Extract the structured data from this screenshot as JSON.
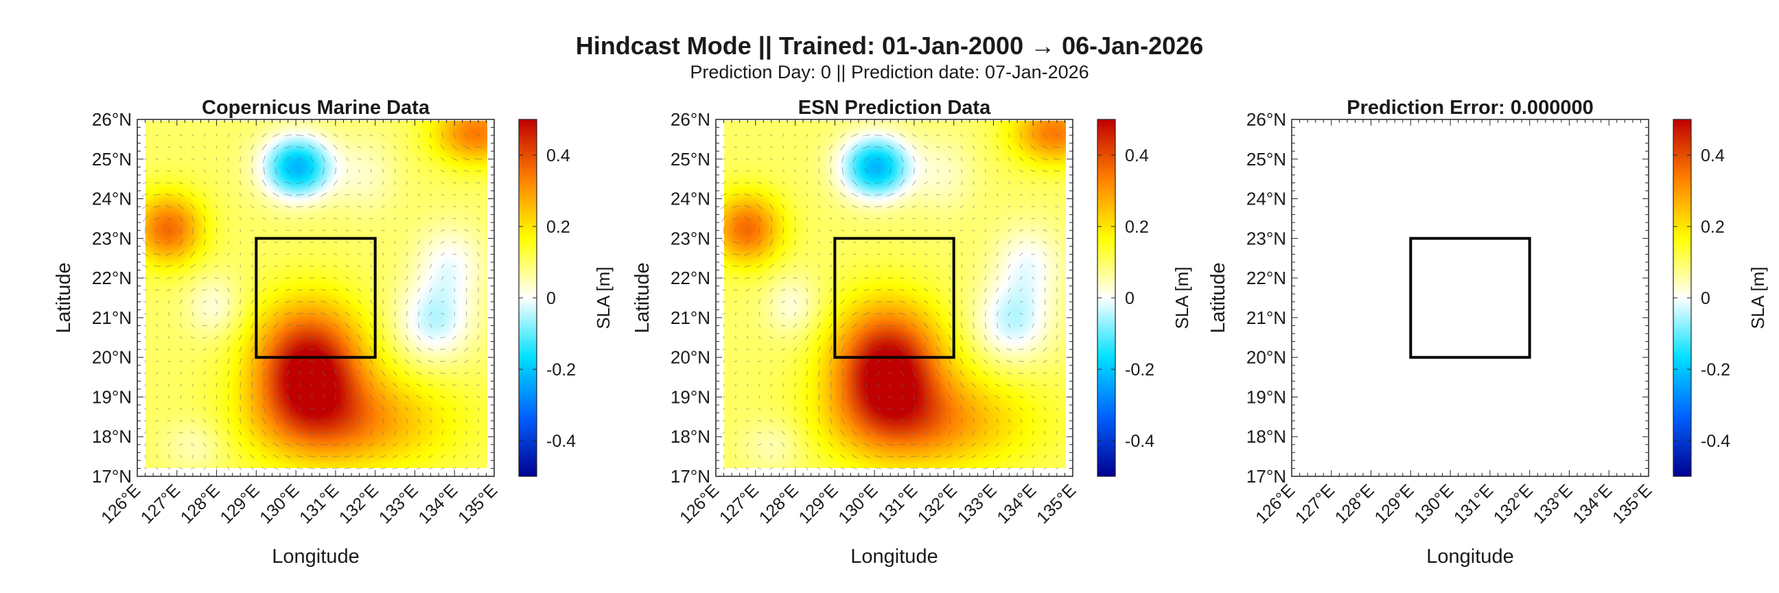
{
  "figure": {
    "title": "Hindcast Mode || Trained: 01-Jan-2000 → 06-Jan-2026",
    "subtitle": "Prediction Day: 0 || Prediction date: 07-Jan-2026"
  },
  "chart_data": [
    {
      "type": "heatmap",
      "title": "Copernicus Marine Data",
      "xlabel": "Longitude",
      "ylabel": "Latitude",
      "xlim": [
        126,
        135
      ],
      "ylim": [
        17,
        26
      ],
      "xticks": [
        "126°E",
        "127°E",
        "128°E",
        "129°E",
        "130°E",
        "131°E",
        "132°E",
        "133°E",
        "134°E",
        "135°E"
      ],
      "yticks": [
        "17°N",
        "18°N",
        "19°N",
        "20°N",
        "21°N",
        "22°N",
        "23°N",
        "24°N",
        "25°N",
        "26°N"
      ],
      "colorbar": {
        "label": "SLA [m]",
        "range": [
          -0.5,
          0.5
        ],
        "ticks": [
          "-0.4",
          "-0.2",
          "0",
          "0.2",
          "0.4"
        ]
      },
      "colormap": [
        "#00008f",
        "#0060ff",
        "#00e0ff",
        "#ffffff",
        "#ffff00",
        "#ff8000",
        "#c00000"
      ],
      "field": "sla",
      "vectors": true,
      "box": {
        "lon": [
          129,
          132
        ],
        "lat": [
          20,
          23
        ]
      },
      "sla_features": [
        {
          "lon": 130.3,
          "lat": 19.6,
          "value": 0.42,
          "r_lon": 1.4,
          "r_lat": 1.6
        },
        {
          "lon": 130.0,
          "lat": 24.8,
          "value": -0.32,
          "r_lon": 0.9,
          "r_lat": 0.8
        },
        {
          "lon": 133.6,
          "lat": 20.8,
          "value": -0.14,
          "r_lon": 1.0,
          "r_lat": 1.0
        },
        {
          "lon": 134.0,
          "lat": 22.3,
          "value": -0.1,
          "r_lon": 0.9,
          "r_lat": 1.0
        },
        {
          "lon": 126.6,
          "lat": 23.2,
          "value": 0.26,
          "r_lon": 0.9,
          "r_lat": 0.9
        },
        {
          "lon": 134.7,
          "lat": 25.7,
          "value": 0.24,
          "r_lon": 1.1,
          "r_lat": 0.8
        },
        {
          "lon": 131.4,
          "lat": 18.2,
          "value": 0.2,
          "r_lon": 2.5,
          "r_lat": 1.2
        },
        {
          "lon": 127.8,
          "lat": 21.2,
          "value": -0.08,
          "r_lon": 0.7,
          "r_lat": 0.8
        },
        {
          "lon": 131.8,
          "lat": 24.6,
          "value": -0.06,
          "r_lon": 0.8,
          "r_lat": 1.0
        },
        {
          "lon": 127.3,
          "lat": 17.6,
          "value": -0.06,
          "r_lon": 0.8,
          "r_lat": 0.7
        }
      ],
      "sla_base": 0.1
    },
    {
      "type": "heatmap",
      "title": "ESN Prediction Data",
      "xlabel": "Longitude",
      "ylabel": "Latitude",
      "xlim": [
        126,
        135
      ],
      "ylim": [
        17,
        26
      ],
      "xticks": [
        "126°E",
        "127°E",
        "128°E",
        "129°E",
        "130°E",
        "131°E",
        "132°E",
        "133°E",
        "134°E",
        "135°E"
      ],
      "yticks": [
        "17°N",
        "18°N",
        "19°N",
        "20°N",
        "21°N",
        "22°N",
        "23°N",
        "24°N",
        "25°N",
        "26°N"
      ],
      "colorbar": {
        "label": "SLA [m]",
        "range": [
          -0.5,
          0.5
        ],
        "ticks": [
          "-0.4",
          "-0.2",
          "0",
          "0.2",
          "0.4"
        ]
      },
      "colormap": [
        "#00008f",
        "#0060ff",
        "#00e0ff",
        "#ffffff",
        "#ffff00",
        "#ff8000",
        "#c00000"
      ],
      "field": "sla",
      "vectors": true,
      "box": {
        "lon": [
          129,
          132
        ],
        "lat": [
          20,
          23
        ]
      },
      "sla_features": [
        {
          "lon": 130.3,
          "lat": 19.6,
          "value": 0.42,
          "r_lon": 1.4,
          "r_lat": 1.6
        },
        {
          "lon": 130.0,
          "lat": 24.8,
          "value": -0.32,
          "r_lon": 0.9,
          "r_lat": 0.8
        },
        {
          "lon": 133.6,
          "lat": 20.8,
          "value": -0.14,
          "r_lon": 1.0,
          "r_lat": 1.0
        },
        {
          "lon": 134.0,
          "lat": 22.3,
          "value": -0.1,
          "r_lon": 0.9,
          "r_lat": 1.0
        },
        {
          "lon": 126.6,
          "lat": 23.2,
          "value": 0.26,
          "r_lon": 0.9,
          "r_lat": 0.9
        },
        {
          "lon": 134.7,
          "lat": 25.7,
          "value": 0.24,
          "r_lon": 1.1,
          "r_lat": 0.8
        },
        {
          "lon": 131.4,
          "lat": 18.2,
          "value": 0.2,
          "r_lon": 2.5,
          "r_lat": 1.2
        },
        {
          "lon": 127.8,
          "lat": 21.2,
          "value": -0.08,
          "r_lon": 0.7,
          "r_lat": 0.8
        },
        {
          "lon": 131.8,
          "lat": 24.6,
          "value": -0.06,
          "r_lon": 0.8,
          "r_lat": 1.0
        },
        {
          "lon": 127.3,
          "lat": 17.6,
          "value": -0.06,
          "r_lon": 0.8,
          "r_lat": 0.7
        }
      ],
      "sla_base": 0.1
    },
    {
      "type": "heatmap",
      "title": "Prediction Error: 0.000000",
      "xlabel": "Longitude",
      "ylabel": "Latitude",
      "xlim": [
        126,
        135
      ],
      "ylim": [
        17,
        26
      ],
      "xticks": [
        "126°E",
        "127°E",
        "128°E",
        "129°E",
        "130°E",
        "131°E",
        "132°E",
        "133°E",
        "134°E",
        "135°E"
      ],
      "yticks": [
        "17°N",
        "18°N",
        "19°N",
        "20°N",
        "21°N",
        "22°N",
        "23°N",
        "24°N",
        "25°N",
        "26°N"
      ],
      "colorbar": {
        "label": "SLA [m]",
        "range": [
          -0.5,
          0.5
        ],
        "ticks": [
          "-0.4",
          "-0.2",
          "0",
          "0.2",
          "0.4"
        ]
      },
      "colormap": [
        "#00008f",
        "#0060ff",
        "#00e0ff",
        "#ffffff",
        "#ffff00",
        "#ff8000",
        "#c00000"
      ],
      "field": "error",
      "error_value": 0.0,
      "vectors": false,
      "box": {
        "lon": [
          129,
          132
        ],
        "lat": [
          20,
          23
        ]
      }
    }
  ]
}
